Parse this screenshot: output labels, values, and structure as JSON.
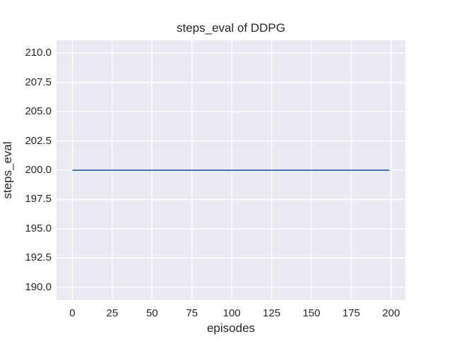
{
  "figure": {
    "background": "#ffffff"
  },
  "chart_data": {
    "type": "line",
    "title": "steps_eval of DDPG",
    "xlabel": "episodes",
    "ylabel": "steps_eval",
    "xlim": [
      -9.95,
      208.95
    ],
    "ylim": [
      188.9,
      211.1
    ],
    "xticks": [
      0,
      25,
      50,
      75,
      100,
      125,
      150,
      175,
      200
    ],
    "xtick_labels": [
      "0",
      "25",
      "50",
      "75",
      "100",
      "125",
      "150",
      "175",
      "200"
    ],
    "yticks": [
      190.0,
      192.5,
      195.0,
      197.5,
      200.0,
      202.5,
      205.0,
      207.5,
      210.0
    ],
    "ytick_labels": [
      "190.0",
      "192.5",
      "195.0",
      "197.5",
      "200.0",
      "202.5",
      "205.0",
      "207.5",
      "210.0"
    ],
    "grid": true,
    "legend_position": "none",
    "plot_background": "#eaeaf2",
    "grid_color": "#ffffff",
    "text_color": "#262626",
    "series": [
      {
        "name": "steps_eval",
        "color": "#4c72b0",
        "x": [
          0,
          199
        ],
        "y": [
          200.0,
          200.0
        ]
      }
    ]
  }
}
